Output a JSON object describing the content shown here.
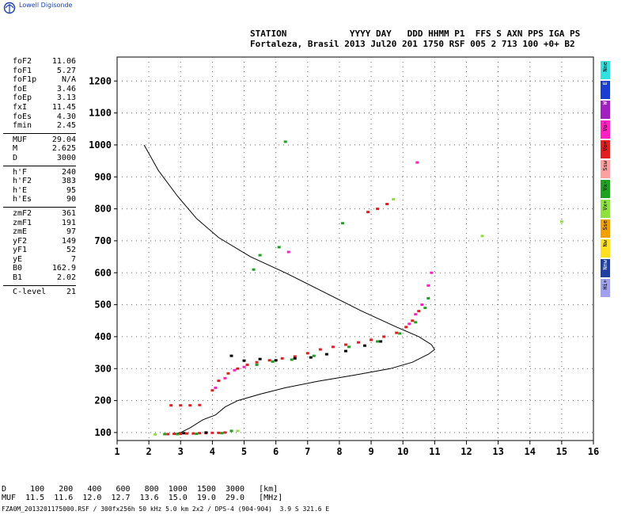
{
  "logo": {
    "text": "Lowell Digisonde"
  },
  "header": {
    "line1": "STATION            YYYY DAY   DDD HHMM P1  FFS S AXN PPS IGA PS",
    "line2": "Fortaleza, Brasil 2013 Jul20 201 1750 RSF 005 2 713 100 +0+ B2"
  },
  "params": [
    [
      {
        "k": "foF2",
        "v": "11.06"
      },
      {
        "k": "foF1",
        "v": "5.27"
      },
      {
        "k": "foF1p",
        "v": "N/A"
      },
      {
        "k": "foE",
        "v": "3.46"
      },
      {
        "k": "foEp",
        "v": "3.13"
      },
      {
        "k": "fxI",
        "v": "11.45"
      },
      {
        "k": "foEs",
        "v": "4.30"
      },
      {
        "k": "fmin",
        "v": "2.45"
      }
    ],
    [
      {
        "k": "MUF",
        "v": "29.04"
      },
      {
        "k": "M",
        "v": "2.625"
      },
      {
        "k": "D",
        "v": "3000"
      }
    ],
    [
      {
        "k": "h'F",
        "v": "240"
      },
      {
        "k": "h'F2",
        "v": "383"
      },
      {
        "k": "h'E",
        "v": "95"
      },
      {
        "k": "h'Es",
        "v": "90"
      }
    ],
    [
      {
        "k": "zmF2",
        "v": "361"
      },
      {
        "k": "zmF1",
        "v": "191"
      },
      {
        "k": "zmE",
        "v": "97"
      },
      {
        "k": "yF2",
        "v": "149"
      },
      {
        "k": "yF1",
        "v": "52"
      },
      {
        "k": "yE",
        "v": "7"
      },
      {
        "k": "B0",
        "v": "162.9"
      },
      {
        "k": "B1",
        "v": "2.02"
      }
    ],
    [
      {
        "k": "C-level",
        "v": "21"
      }
    ]
  ],
  "legend": [
    {
      "label": "Nne",
      "color": "#33e0e0"
    },
    {
      "label": "E",
      "color": "#1a3fd0"
    },
    {
      "label": "W",
      "color": "#a020c0"
    },
    {
      "label": "Vo-",
      "color": "#ff20c0"
    },
    {
      "label": "Vo+",
      "color": "#e02020"
    },
    {
      "label": "Ssw",
      "color": "#ffa0a0"
    },
    {
      "label": "Vx-",
      "color": "#20a020"
    },
    {
      "label": "Vx+",
      "color": "#90e040"
    },
    {
      "label": "Sse",
      "color": "#f0a000"
    },
    {
      "label": "Nw",
      "color": "#ffe020"
    },
    {
      "label": "Nnw",
      "color": "#2040a0"
    },
    {
      "label": "Hi+",
      "color": "#a0a0f0"
    }
  ],
  "bottom": {
    "line1": "D     100   200   400   600   800  1000  1500  3000   [km]",
    "line2": "MUF  11.5  11.6  12.0  12.7  13.6  15.0  19.0  29.0   [MHz]"
  },
  "footer": "FZA0M_2013201175000.RSF / 300fx256h 50 kHz 5.0 km 2x2 / DPS-4 (904-904)  3.9 S 321.6 E",
  "chart_data": {
    "type": "scatter",
    "xlim": [
      1,
      16
    ],
    "ylim": [
      75,
      1275
    ],
    "xticks": [
      1,
      2,
      3,
      4,
      5,
      6,
      7,
      8,
      9,
      10,
      11,
      12,
      13,
      14,
      15,
      16
    ],
    "yticks": [
      100,
      200,
      300,
      400,
      500,
      600,
      700,
      800,
      900,
      1000,
      1100,
      1200
    ],
    "grid": true,
    "profile": [
      [
        1.85,
        1000
      ],
      [
        2.3,
        920
      ],
      [
        2.9,
        840
      ],
      [
        3.5,
        770
      ],
      [
        4.2,
        710
      ],
      [
        5.2,
        650
      ],
      [
        6.3,
        600
      ],
      [
        7.5,
        540
      ],
      [
        8.7,
        480
      ],
      [
        9.8,
        430
      ],
      [
        10.5,
        400
      ],
      [
        10.9,
        375
      ],
      [
        11.0,
        360
      ],
      [
        10.8,
        345
      ],
      [
        10.3,
        320
      ],
      [
        9.6,
        300
      ],
      [
        8.5,
        280
      ],
      [
        7.3,
        260
      ],
      [
        6.3,
        240
      ],
      [
        5.5,
        220
      ],
      [
        4.8,
        200
      ],
      [
        4.4,
        180
      ],
      [
        4.1,
        155
      ],
      [
        3.7,
        140
      ],
      [
        3.3,
        115
      ],
      [
        3.0,
        100
      ],
      [
        2.75,
        95
      ]
    ],
    "series": [
      {
        "color": "#e02020",
        "points": [
          [
            2.6,
            95
          ],
          [
            2.8,
            96
          ],
          [
            3.0,
            96
          ],
          [
            3.2,
            97
          ],
          [
            3.4,
            97
          ],
          [
            3.6,
            98
          ],
          [
            3.8,
            98
          ],
          [
            4.0,
            99
          ],
          [
            4.2,
            99
          ],
          [
            4.4,
            100
          ],
          [
            2.7,
            185
          ],
          [
            3.0,
            185
          ],
          [
            3.3,
            185
          ],
          [
            3.6,
            186
          ],
          [
            4.0,
            232
          ],
          [
            4.2,
            262
          ],
          [
            4.5,
            285
          ],
          [
            4.8,
            300
          ],
          [
            5.1,
            312
          ],
          [
            5.4,
            320
          ],
          [
            5.8,
            326
          ],
          [
            6.2,
            332
          ],
          [
            6.6,
            338
          ],
          [
            7.0,
            348
          ],
          [
            7.4,
            360
          ],
          [
            7.8,
            368
          ],
          [
            8.2,
            375
          ],
          [
            8.6,
            382
          ],
          [
            9.0,
            390
          ],
          [
            9.4,
            400
          ],
          [
            9.8,
            412
          ],
          [
            10.1,
            430
          ],
          [
            10.3,
            450
          ],
          [
            10.5,
            480
          ],
          [
            8.9,
            790
          ],
          [
            9.2,
            800
          ],
          [
            9.5,
            815
          ]
        ]
      },
      {
        "color": "#20a020",
        "points": [
          [
            2.5,
            95
          ],
          [
            2.9,
            95
          ],
          [
            3.5,
            96
          ],
          [
            4.3,
            98
          ],
          [
            4.6,
            105
          ],
          [
            5.4,
            312
          ],
          [
            5.9,
            322
          ],
          [
            6.5,
            328
          ],
          [
            7.2,
            340
          ],
          [
            8.3,
            368
          ],
          [
            9.2,
            385
          ],
          [
            9.9,
            410
          ],
          [
            10.4,
            445
          ],
          [
            10.7,
            490
          ],
          [
            10.8,
            520
          ],
          [
            5.5,
            655
          ],
          [
            6.1,
            680
          ],
          [
            6.3,
            1010
          ],
          [
            5.3,
            610
          ],
          [
            8.1,
            755
          ]
        ]
      },
      {
        "color": "#ff20c0",
        "points": [
          [
            4.1,
            240
          ],
          [
            4.4,
            270
          ],
          [
            4.7,
            295
          ],
          [
            5.0,
            305
          ],
          [
            10.2,
            440
          ],
          [
            10.4,
            470
          ],
          [
            10.6,
            500
          ],
          [
            10.8,
            560
          ],
          [
            10.9,
            600
          ],
          [
            10.45,
            945
          ],
          [
            6.4,
            665
          ]
        ]
      },
      {
        "color": "#000000",
        "points": [
          [
            4.6,
            340
          ],
          [
            5.0,
            325
          ],
          [
            5.5,
            330
          ],
          [
            6.0,
            326
          ],
          [
            6.6,
            332
          ],
          [
            7.1,
            335
          ],
          [
            7.6,
            345
          ],
          [
            8.2,
            355
          ],
          [
            8.8,
            372
          ],
          [
            9.3,
            385
          ],
          [
            3.1,
            98
          ],
          [
            3.8,
            100
          ]
        ]
      },
      {
        "color": "#90e040",
        "points": [
          [
            2.2,
            94
          ],
          [
            4.8,
            105
          ],
          [
            9.7,
            830
          ],
          [
            12.5,
            715
          ],
          [
            15.0,
            760
          ]
        ]
      }
    ]
  }
}
